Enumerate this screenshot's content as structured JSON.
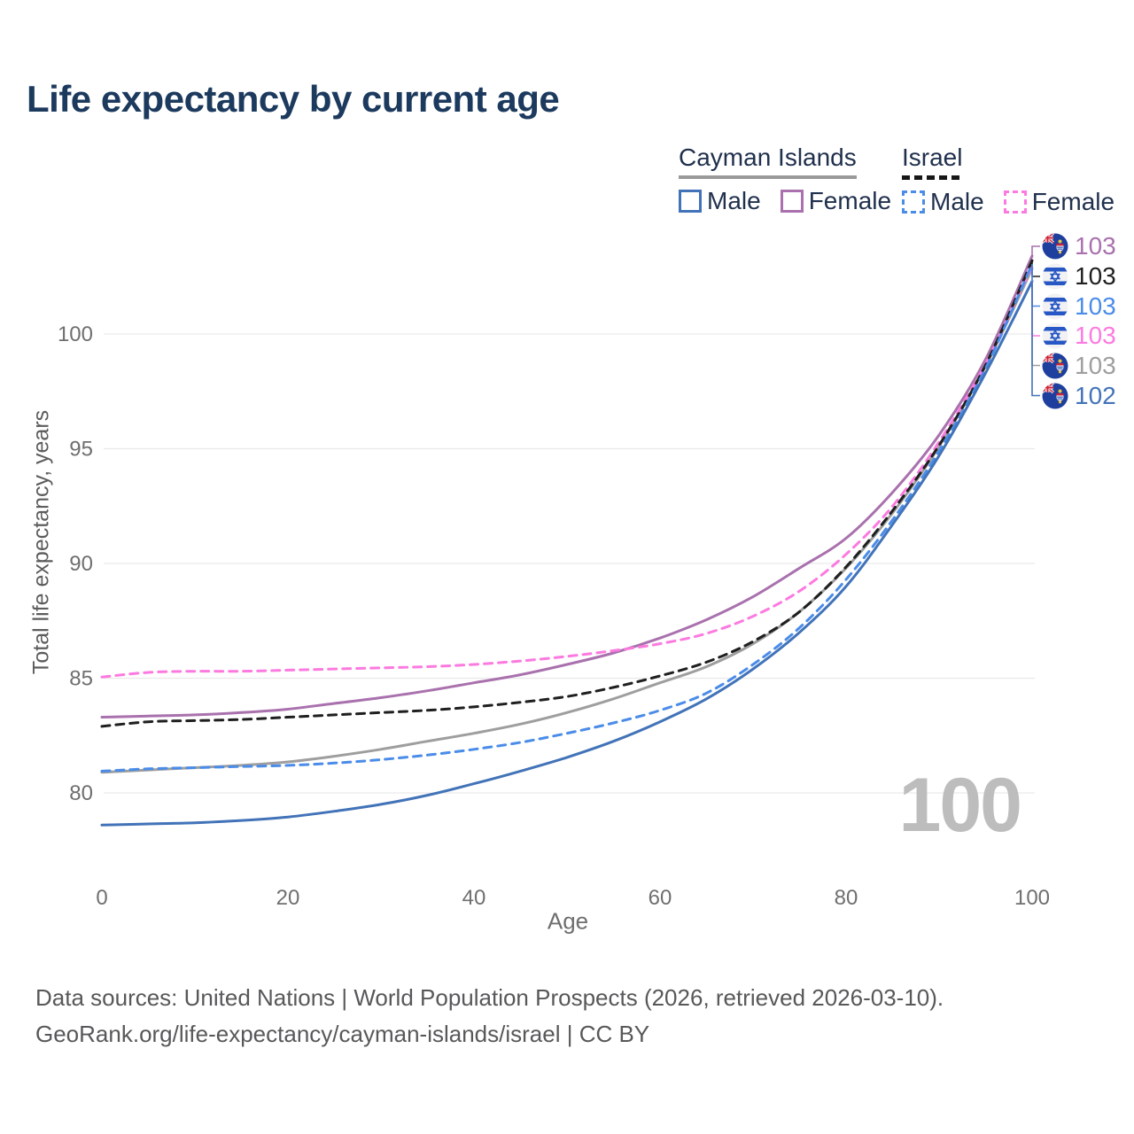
{
  "title": "Life expectancy by current age",
  "legend": {
    "groups": [
      {
        "label": "Cayman Islands",
        "underline_style": "solid",
        "underline_color": "#9a9a9a",
        "items": [
          {
            "label": "Male",
            "color": "#4273b8",
            "style": "solid"
          },
          {
            "label": "Female",
            "color": "#a971ad",
            "style": "solid"
          }
        ]
      },
      {
        "label": "Israel",
        "underline_style": "dashed",
        "underline_color": "#161616",
        "items": [
          {
            "label": "Male",
            "color": "#4a8ce8",
            "style": "dashed"
          },
          {
            "label": "Female",
            "color": "#fc7ae0",
            "style": "dashed"
          }
        ]
      }
    ]
  },
  "watermark": "100",
  "chart_data": {
    "type": "line",
    "title": "Life expectancy by current age",
    "xlabel": "Age",
    "ylabel": "Total life expectancy, years",
    "x_ticks": [
      0,
      20,
      40,
      60,
      80,
      100
    ],
    "y_ticks": [
      80,
      85,
      90,
      95,
      100
    ],
    "xlim": [
      0,
      100
    ],
    "ylim": [
      77.5,
      103.5
    ],
    "grid": true,
    "legend_position": "top-right",
    "x": [
      0,
      5,
      10,
      15,
      20,
      25,
      30,
      35,
      40,
      45,
      50,
      55,
      60,
      65,
      70,
      75,
      80,
      85,
      90,
      95,
      100
    ],
    "series": [
      {
        "country": "Cayman Islands",
        "sex": "Both sexes",
        "color": "#9e9e9e",
        "dash": false,
        "label_row": 4,
        "end_label": "103",
        "flag": "cayman-islands",
        "values": [
          80.9,
          81.0,
          81.1,
          81.2,
          81.35,
          81.6,
          81.9,
          82.25,
          82.6,
          83.0,
          83.5,
          84.1,
          84.8,
          85.5,
          86.5,
          87.9,
          89.8,
          92.2,
          95.1,
          98.6,
          102.85
        ]
      },
      {
        "country": "Cayman Islands",
        "sex": "Female",
        "color": "#a971ad",
        "dash": false,
        "label_row": 0,
        "end_label": "103",
        "flag": "cayman-islands",
        "values": [
          83.3,
          83.35,
          83.4,
          83.5,
          83.65,
          83.9,
          84.15,
          84.45,
          84.8,
          85.15,
          85.6,
          86.1,
          86.75,
          87.55,
          88.55,
          89.8,
          91.1,
          93.1,
          95.6,
          98.9,
          103.4
        ]
      },
      {
        "country": "Israel",
        "sex": "Female",
        "color": "#fc7ae0",
        "dash": true,
        "label_row": 3,
        "end_label": "103",
        "flag": "israel",
        "values": [
          85.05,
          85.25,
          85.3,
          85.3,
          85.35,
          85.4,
          85.45,
          85.5,
          85.6,
          85.75,
          85.95,
          86.2,
          86.5,
          86.95,
          87.7,
          88.8,
          90.4,
          92.5,
          95.3,
          98.7,
          102.95
        ]
      },
      {
        "country": "Israel",
        "sex": "Both sexes",
        "color": "#1f1f1f",
        "dash": true,
        "label_row": 1,
        "end_label": "103",
        "flag": "israel",
        "values": [
          82.9,
          83.1,
          83.15,
          83.2,
          83.3,
          83.4,
          83.5,
          83.6,
          83.75,
          83.95,
          84.2,
          84.6,
          85.1,
          85.7,
          86.6,
          87.9,
          89.85,
          92.3,
          95.15,
          98.65,
          103.2
        ]
      },
      {
        "country": "Israel",
        "sex": "Male",
        "color": "#4a8ce8",
        "dash": true,
        "label_row": 2,
        "end_label": "103",
        "flag": "israel",
        "values": [
          80.95,
          81.05,
          81.1,
          81.15,
          81.2,
          81.3,
          81.45,
          81.65,
          81.9,
          82.2,
          82.6,
          83.05,
          83.6,
          84.35,
          85.6,
          87.2,
          89.3,
          91.9,
          94.9,
          98.5,
          103.05
        ]
      },
      {
        "country": "Cayman Islands",
        "sex": "Male",
        "color": "#4273b8",
        "dash": false,
        "label_row": 5,
        "end_label": "102",
        "flag": "cayman-islands",
        "values": [
          78.6,
          78.65,
          78.7,
          78.8,
          78.95,
          79.2,
          79.5,
          79.9,
          80.4,
          80.95,
          81.55,
          82.25,
          83.1,
          84.1,
          85.4,
          87.0,
          89.0,
          91.7,
          94.7,
          98.3,
          102.3
        ]
      }
    ]
  },
  "footer": {
    "line1": "Data sources: United Nations | World Population Prospects (2026, retrieved 2026-03-10).",
    "line2": "GeoRank.org/life-expectancy/cayman-islands/israel | CC BY"
  }
}
